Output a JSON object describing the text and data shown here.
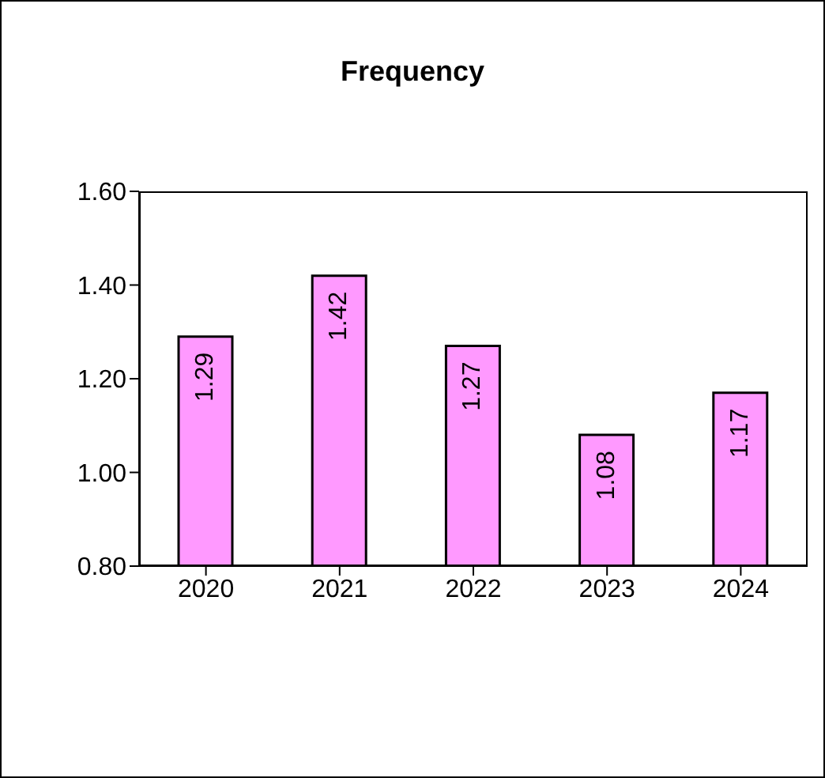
{
  "chart_data": {
    "type": "bar",
    "title": "Frequency",
    "categories": [
      "2020",
      "2021",
      "2022",
      "2023",
      "2024"
    ],
    "values": [
      1.29,
      1.42,
      1.27,
      1.08,
      1.17
    ],
    "color": "#ff99ff",
    "ylim": [
      0.8,
      1.6
    ],
    "yticks": [
      {
        "value": 0.8,
        "label": "0.80"
      },
      {
        "value": 1.0,
        "label": "1.00"
      },
      {
        "value": 1.2,
        "label": "1.20"
      },
      {
        "value": 1.4,
        "label": "1.40"
      },
      {
        "value": 1.6,
        "label": "1.60"
      }
    ],
    "grid": false,
    "legend": false,
    "data_labels": true
  }
}
